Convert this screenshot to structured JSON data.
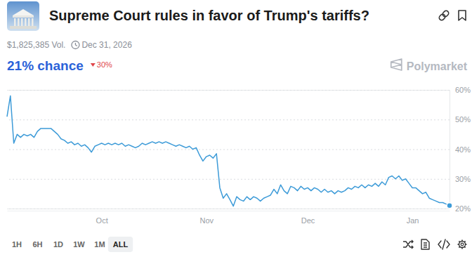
{
  "chart_data": {
    "type": "line",
    "title": "Supreme Court rules in favor of Trump's tariffs?",
    "categories": [
      null,
      null,
      null,
      null,
      null,
      null,
      null,
      null,
      null,
      null,
      null,
      null,
      null,
      null,
      null,
      null,
      null,
      null,
      null,
      null,
      null,
      null,
      null,
      null,
      null,
      null,
      null,
      null,
      "Oct",
      null,
      null,
      null,
      null,
      null,
      null,
      null,
      null,
      null,
      null,
      null,
      null,
      null,
      null,
      null,
      null,
      null,
      null,
      null,
      null,
      null,
      null,
      null,
      null,
      null,
      null,
      null,
      null,
      null,
      null,
      "Nov",
      null,
      null,
      null,
      null,
      null,
      null,
      null,
      null,
      null,
      null,
      null,
      null,
      null,
      null,
      null,
      null,
      null,
      null,
      null,
      null,
      null,
      null,
      null,
      null,
      null,
      null,
      null,
      null,
      null,
      "Dec",
      null,
      null,
      null,
      null,
      null,
      null,
      null,
      null,
      null,
      null,
      null,
      null,
      null,
      null,
      null,
      null,
      null,
      null,
      null,
      null,
      null,
      null,
      null,
      null,
      null,
      null,
      null,
      null,
      null,
      null,
      "Jan",
      null,
      null,
      null,
      null,
      null,
      null,
      null,
      null,
      null,
      null,
      null
    ],
    "values": [
      51,
      58,
      42,
      45,
      44,
      45,
      44.5,
      45,
      44,
      46,
      47,
      47,
      47,
      47,
      46,
      45,
      43.5,
      43,
      42,
      42.5,
      41.5,
      42,
      41,
      41.5,
      40.5,
      39,
      41,
      41.5,
      42,
      41.5,
      42,
      41.5,
      42,
      41.5,
      42,
      41,
      41.5,
      41,
      40.5,
      41,
      42,
      41.5,
      42,
      42.5,
      42,
      42.5,
      42,
      42.5,
      42,
      41.5,
      41,
      41.5,
      41,
      40.5,
      41,
      40,
      40.5,
      38,
      36,
      37.5,
      38,
      37,
      38.5,
      27,
      23.5,
      25,
      23,
      20.8,
      24,
      23,
      22.5,
      24,
      23,
      24,
      23.5,
      22.5,
      23.5,
      24,
      24.5,
      26.5,
      25,
      28,
      26,
      25,
      27.5,
      27,
      26,
      27.5,
      26.5,
      27,
      26,
      27,
      26.5,
      25.5,
      26.5,
      25.5,
      26,
      25,
      26,
      25.5,
      26,
      27,
      26.5,
      27.5,
      27,
      28,
      27,
      28,
      27.5,
      28.5,
      27.5,
      29,
      28,
      30.5,
      31,
      30,
      31,
      29.5,
      30,
      28.5,
      27,
      27,
      26,
      25,
      25.5,
      23.5,
      23,
      22.5,
      22,
      22,
      21.5,
      21
    ],
    "color": "#3d9bd8",
    "ylim": [
      20,
      60
    ],
    "yticks": [
      {
        "value": 20,
        "label": "20%"
      },
      {
        "value": 30,
        "label": "30%"
      },
      {
        "value": 40,
        "label": "40%"
      },
      {
        "value": 50,
        "label": "50%"
      },
      {
        "value": 60,
        "label": "60%"
      }
    ],
    "grid": true
  },
  "page": {
    "volume": "$1,825,385 Vol.",
    "end_date": "Dec 31, 2026",
    "chance": "21% chance",
    "change": "30%",
    "brand": "Polymarket",
    "ranges": [
      "1H",
      "6H",
      "1D",
      "1W",
      "1M",
      "ALL"
    ]
  }
}
